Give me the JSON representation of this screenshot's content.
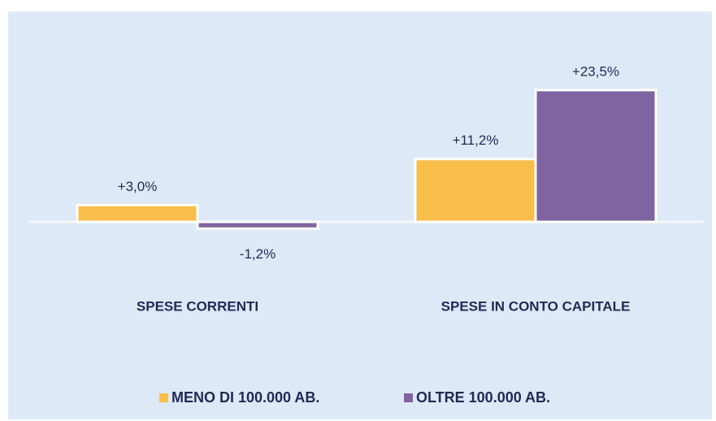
{
  "chart_data": {
    "type": "bar",
    "categories": [
      "SPESE CORRENTI",
      "SPESE IN CONTO CAPITALE"
    ],
    "series": [
      {
        "name": "MENO DI 100.000 AB.",
        "color": "#f9bd4a",
        "values": [
          3.0,
          11.2
        ],
        "value_labels": [
          "+3,0%",
          "+11,2%"
        ]
      },
      {
        "name": "OLTRE 100.000 AB.",
        "color": "#8064a2",
        "values": [
          -1.2,
          23.5
        ],
        "value_labels": [
          "-1,2%",
          "+23,5%"
        ]
      }
    ],
    "ylim": [
      -10,
      30
    ]
  }
}
